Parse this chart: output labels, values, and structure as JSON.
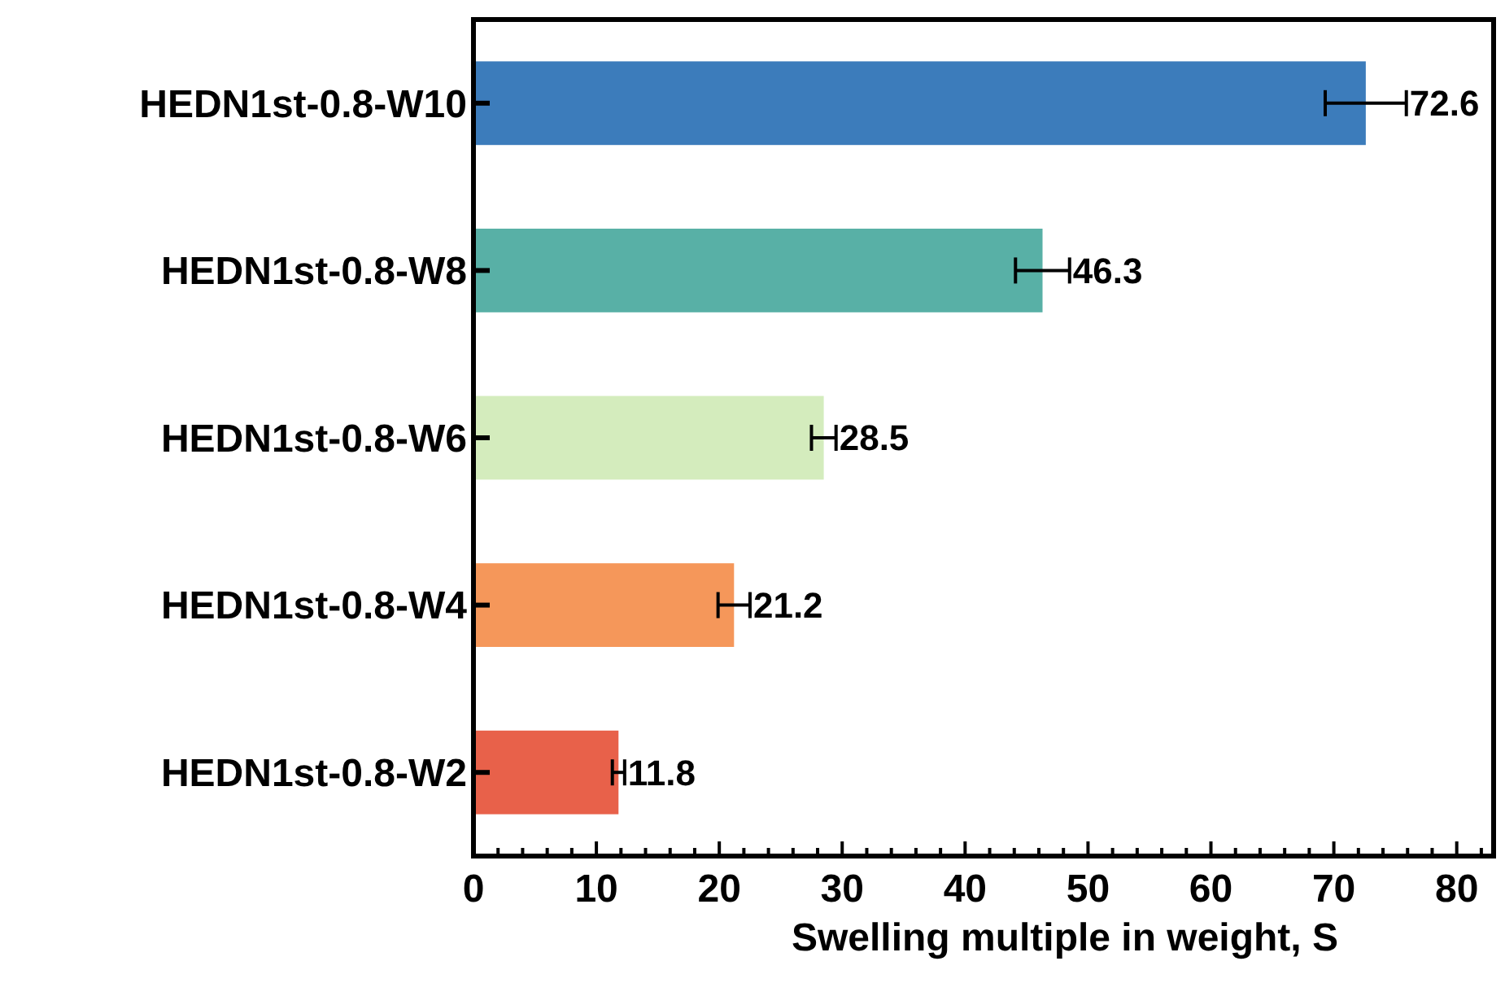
{
  "chart_data": {
    "type": "bar",
    "orientation": "horizontal",
    "xlabel": "Swelling multiple in weight, S",
    "categories": [
      "HEDN1st-0.8-W10",
      "HEDN1st-0.8-W8",
      "HEDN1st-0.8-W6",
      "HEDN1st-0.8-W4",
      "HEDN1st-0.8-W2"
    ],
    "values": [
      72.6,
      46.3,
      28.5,
      21.2,
      11.8
    ],
    "colors": [
      "#3c7cbb",
      "#58b0a6",
      "#d4ecbd",
      "#f5975a",
      "#e8614a"
    ],
    "errors": [
      3.3,
      2.2,
      1.0,
      1.3,
      0.5
    ],
    "data_labels": true,
    "grid": false,
    "xlim": [
      0,
      83
    ],
    "xticks": [
      0,
      {
        "value": 2,
        "label": null
      },
      {
        "value": 4,
        "label": null
      },
      {
        "value": 6,
        "label": null
      },
      {
        "value": 8,
        "label": null
      },
      10,
      {
        "value": 12,
        "label": null
      },
      {
        "value": 14,
        "label": null
      },
      {
        "value": 16,
        "label": null
      },
      {
        "value": 18,
        "label": null
      },
      20,
      {
        "value": 22,
        "label": null
      },
      {
        "value": 24,
        "label": null
      },
      {
        "value": 26,
        "label": null
      },
      {
        "value": 28,
        "label": null
      },
      30,
      {
        "value": 32,
        "label": null
      },
      {
        "value": 34,
        "label": null
      },
      {
        "value": 36,
        "label": null
      },
      {
        "value": 38,
        "label": null
      },
      40,
      {
        "value": 42,
        "label": null
      },
      {
        "value": 44,
        "label": null
      },
      {
        "value": 46,
        "label": null
      },
      {
        "value": 48,
        "label": null
      },
      50,
      {
        "value": 52,
        "label": null
      },
      {
        "value": 54,
        "label": null
      },
      {
        "value": 56,
        "label": null
      },
      {
        "value": 58,
        "label": null
      },
      60,
      {
        "value": 62,
        "label": null
      },
      {
        "value": 64,
        "label": null
      },
      {
        "value": 66,
        "label": null
      },
      {
        "value": 68,
        "label": null
      },
      70,
      {
        "value": 72,
        "label": null
      },
      {
        "value": 74,
        "label": null
      },
      {
        "value": 76,
        "label": null
      },
      {
        "value": 78,
        "label": null
      },
      80,
      {
        "value": 82,
        "label": null
      }
    ]
  }
}
